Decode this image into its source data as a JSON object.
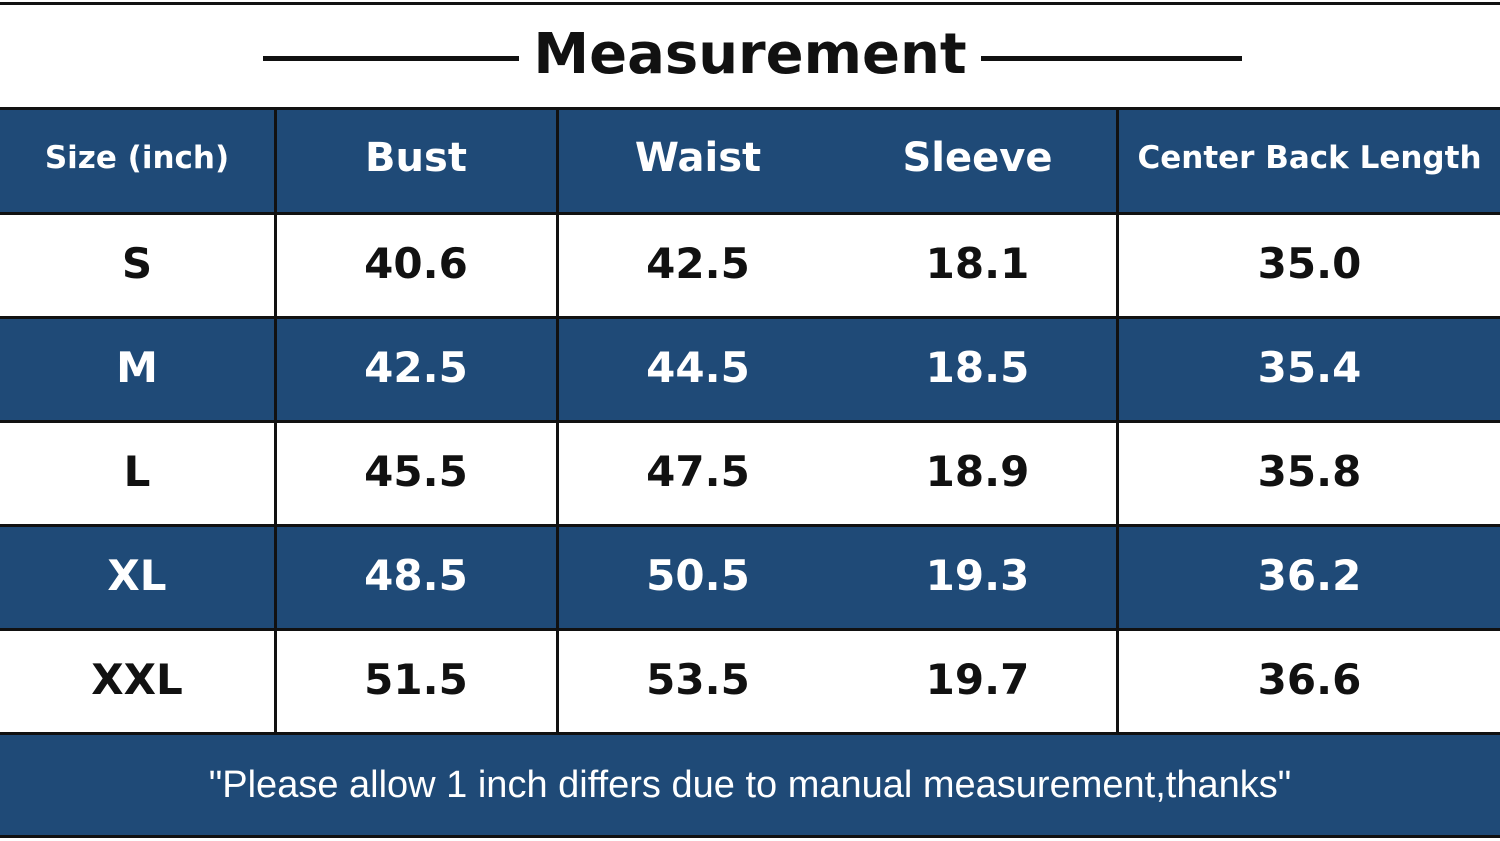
{
  "title": "Measurement",
  "table": {
    "header": [
      "Size  (inch)",
      "Bust",
      "Waist",
      "Sleeve",
      "Center Back Length"
    ],
    "rows": [
      [
        "S",
        "40.6",
        "42.5",
        "18.1",
        "35.0"
      ],
      [
        "M",
        "42.5",
        "44.5",
        "18.5",
        "35.4"
      ],
      [
        "L",
        "45.5",
        "47.5",
        "18.9",
        "35.8"
      ],
      [
        "XL",
        "48.5",
        "50.5",
        "19.3",
        "36.2"
      ],
      [
        "XXL",
        "51.5",
        "53.5",
        "19.7",
        "36.6"
      ]
    ]
  },
  "note": "\"Please allow 1 inch differs due to manual measurement,thanks\""
}
